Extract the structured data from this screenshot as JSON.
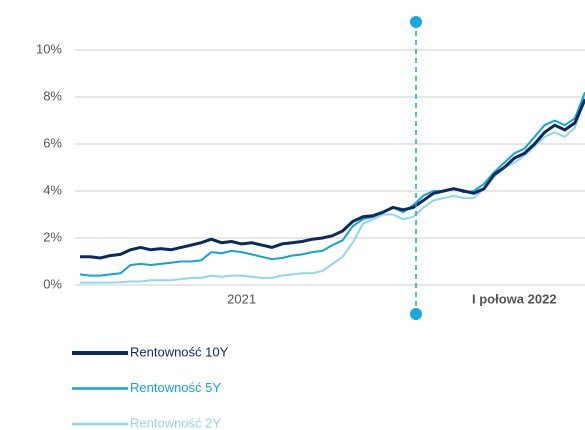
{
  "chart_data": {
    "type": "line",
    "categories": [
      null,
      null,
      null,
      null,
      null,
      null,
      null,
      null,
      null,
      null,
      null,
      null,
      null,
      null,
      null,
      null,
      "2021",
      null,
      null,
      null,
      null,
      null,
      null,
      null,
      null,
      null,
      null,
      null,
      null,
      null,
      null,
      null,
      null,
      null,
      null,
      null,
      null,
      null,
      null,
      null,
      null,
      null,
      null,
      "I połowa 2022",
      null,
      null,
      null,
      null,
      null,
      null,
      null
    ],
    "series": [
      {
        "name": "Rentowność 10Y",
        "color": "#0b2a5e",
        "values": [
          1.2,
          1.2,
          1.15,
          1.25,
          1.3,
          1.5,
          1.6,
          1.5,
          1.55,
          1.5,
          1.6,
          1.7,
          1.8,
          1.95,
          1.8,
          1.85,
          1.75,
          1.8,
          1.7,
          1.6,
          1.75,
          1.8,
          1.85,
          1.95,
          2.0,
          2.1,
          2.3,
          2.7,
          2.9,
          2.95,
          3.1,
          3.3,
          3.2,
          3.3,
          3.6,
          3.9,
          4.0,
          4.1,
          4.0,
          3.9,
          4.1,
          4.7,
          5.0,
          5.4,
          5.6,
          6.0,
          6.5,
          6.8,
          6.6,
          6.9,
          7.9
        ]
      },
      {
        "name": "Rentowność 5Y",
        "color": "#13a4d8",
        "values": [
          0.45,
          0.4,
          0.4,
          0.45,
          0.5,
          0.85,
          0.9,
          0.85,
          0.9,
          0.95,
          1.0,
          1.0,
          1.05,
          1.4,
          1.35,
          1.45,
          1.4,
          1.3,
          1.2,
          1.1,
          1.15,
          1.25,
          1.3,
          1.4,
          1.45,
          1.7,
          1.9,
          2.5,
          2.8,
          2.9,
          3.1,
          3.3,
          3.1,
          3.4,
          3.8,
          4.0,
          4.0,
          4.1,
          3.95,
          4.0,
          4.3,
          4.8,
          5.2,
          5.6,
          5.8,
          6.3,
          6.8,
          7.0,
          6.8,
          7.1,
          8.2
        ]
      },
      {
        "name": "Rentowność 2Y",
        "color": "#8fd6ee",
        "values": [
          0.1,
          0.1,
          0.1,
          0.1,
          0.12,
          0.15,
          0.15,
          0.2,
          0.2,
          0.2,
          0.25,
          0.3,
          0.3,
          0.4,
          0.35,
          0.4,
          0.4,
          0.35,
          0.3,
          0.3,
          0.4,
          0.45,
          0.5,
          0.5,
          0.6,
          0.9,
          1.2,
          1.8,
          2.6,
          2.8,
          3.0,
          3.0,
          2.8,
          2.9,
          3.3,
          3.6,
          3.7,
          3.8,
          3.7,
          3.7,
          4.1,
          4.6,
          5.0,
          5.2,
          5.5,
          5.9,
          6.3,
          6.5,
          6.3,
          6.7,
          8.0
        ]
      }
    ],
    "ylim": [
      0,
      10.5
    ],
    "yticks": [
      {
        "value": 0,
        "label": "0%"
      },
      {
        "value": 2,
        "label": "2%"
      },
      {
        "value": 4,
        "label": "4%"
      },
      {
        "value": 6,
        "label": "6%"
      },
      {
        "value": 8,
        "label": "8%"
      },
      {
        "value": 10,
        "label": "10%"
      }
    ],
    "grid": true
  }
}
